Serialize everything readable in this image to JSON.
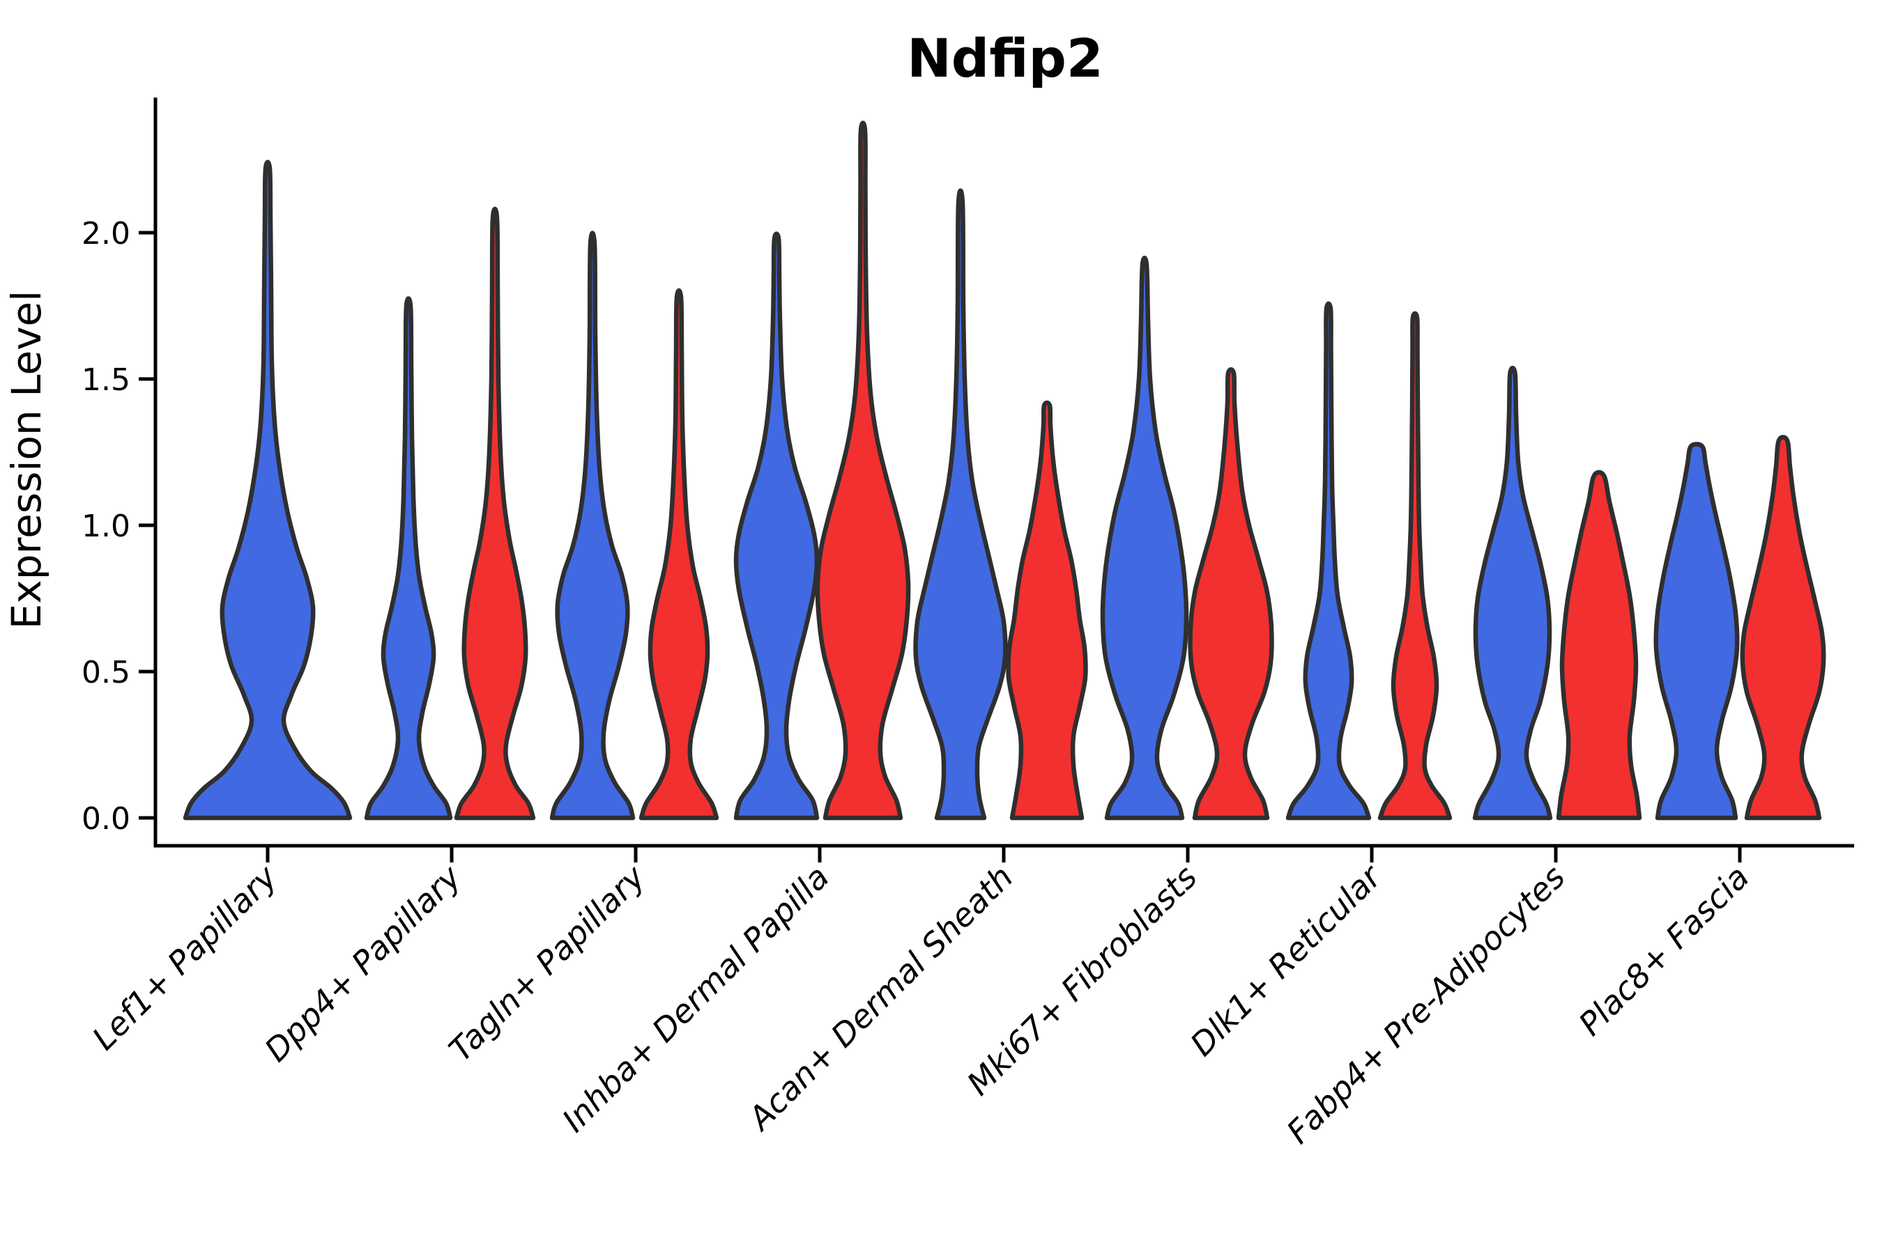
{
  "title": "Ndfip2",
  "axis": {
    "ylabel": "Expression Level",
    "yticks": [
      "0.0",
      "0.5",
      "1.0",
      "1.5",
      "2.0"
    ]
  },
  "colors": {
    "group1_fill": "#4169E1",
    "group2_fill": "#F23030",
    "outline": "#2F2F2F",
    "axis": "#000000",
    "background": "#FFFFFF"
  },
  "chart_data": {
    "type": "violin",
    "title": "Ndfip2",
    "xlabel": "",
    "ylabel": "Expression Level",
    "ylim": [
      0,
      2.45
    ],
    "yticks": [
      0.0,
      0.5,
      1.0,
      1.5,
      2.0
    ],
    "grid": false,
    "legend": "none",
    "categories": [
      "Lef1+ Papillary",
      "Dpp4+ Papillary",
      "Tagln+ Papillary",
      "Inhba+ Dermal Papilla",
      "Acan+ Dermal Sheath",
      "Mki67+ Fibroblasts",
      "Dlk1+ Reticular",
      "Fabp4+ Pre-Adipocytes",
      "Plac8+ Fascia"
    ],
    "groups": [
      {
        "name": "group1",
        "color": "#4169E1"
      },
      {
        "name": "group2",
        "color": "#F23030"
      }
    ],
    "violins": [
      {
        "category_index": 0,
        "group": "group1",
        "split": false,
        "max_expression": 2.22,
        "profile": [
          [
            0,
            118
          ],
          [
            0.05,
            110
          ],
          [
            0.1,
            92
          ],
          [
            0.16,
            62
          ],
          [
            0.24,
            38
          ],
          [
            0.33,
            23
          ],
          [
            0.42,
            34
          ],
          [
            0.52,
            52
          ],
          [
            0.62,
            62
          ],
          [
            0.72,
            65
          ],
          [
            0.82,
            56
          ],
          [
            0.92,
            42
          ],
          [
            1.05,
            28
          ],
          [
            1.2,
            17
          ],
          [
            1.35,
            10
          ],
          [
            1.55,
            6
          ],
          [
            1.8,
            5
          ],
          [
            2.05,
            4
          ],
          [
            2.22,
            3
          ]
        ]
      },
      {
        "category_index": 1,
        "group": "group1",
        "split": true,
        "max_expression": 1.75,
        "profile": [
          [
            0,
            60
          ],
          [
            0.05,
            54
          ],
          [
            0.11,
            36
          ],
          [
            0.18,
            22
          ],
          [
            0.27,
            15
          ],
          [
            0.36,
            20
          ],
          [
            0.46,
            30
          ],
          [
            0.55,
            36
          ],
          [
            0.63,
            33
          ],
          [
            0.72,
            24
          ],
          [
            0.83,
            15
          ],
          [
            0.95,
            10
          ],
          [
            1.1,
            7
          ],
          [
            1.3,
            5
          ],
          [
            1.55,
            4
          ],
          [
            1.75,
            3
          ]
        ]
      },
      {
        "category_index": 1,
        "group": "group2",
        "split": true,
        "max_expression": 2.05,
        "profile": [
          [
            0,
            55
          ],
          [
            0.05,
            48
          ],
          [
            0.11,
            30
          ],
          [
            0.18,
            18
          ],
          [
            0.25,
            16
          ],
          [
            0.35,
            26
          ],
          [
            0.45,
            38
          ],
          [
            0.55,
            44
          ],
          [
            0.65,
            43
          ],
          [
            0.75,
            38
          ],
          [
            0.85,
            30
          ],
          [
            0.95,
            21
          ],
          [
            1.08,
            13
          ],
          [
            1.25,
            8
          ],
          [
            1.5,
            5
          ],
          [
            1.8,
            4
          ],
          [
            2.05,
            3
          ]
        ]
      },
      {
        "category_index": 2,
        "group": "group1",
        "split": true,
        "max_expression": 1.96,
        "profile": [
          [
            0,
            58
          ],
          [
            0.05,
            52
          ],
          [
            0.12,
            32
          ],
          [
            0.2,
            18
          ],
          [
            0.29,
            16
          ],
          [
            0.4,
            24
          ],
          [
            0.52,
            38
          ],
          [
            0.63,
            48
          ],
          [
            0.73,
            50
          ],
          [
            0.83,
            42
          ],
          [
            0.93,
            28
          ],
          [
            1.05,
            17
          ],
          [
            1.2,
            10
          ],
          [
            1.4,
            6
          ],
          [
            1.65,
            4
          ],
          [
            1.96,
            3
          ]
        ]
      },
      {
        "category_index": 2,
        "group": "group2",
        "split": true,
        "max_expression": 1.78,
        "profile": [
          [
            0,
            54
          ],
          [
            0.05,
            47
          ],
          [
            0.12,
            28
          ],
          [
            0.19,
            17
          ],
          [
            0.27,
            17
          ],
          [
            0.37,
            27
          ],
          [
            0.47,
            37
          ],
          [
            0.56,
            41
          ],
          [
            0.65,
            39
          ],
          [
            0.75,
            31
          ],
          [
            0.86,
            20
          ],
          [
            1.0,
            12
          ],
          [
            1.15,
            8
          ],
          [
            1.35,
            5
          ],
          [
            1.6,
            4
          ],
          [
            1.78,
            3
          ]
        ]
      },
      {
        "category_index": 3,
        "group": "group1",
        "split": true,
        "max_expression": 1.98,
        "profile": [
          [
            0,
            58
          ],
          [
            0.06,
            52
          ],
          [
            0.13,
            32
          ],
          [
            0.21,
            18
          ],
          [
            0.3,
            14
          ],
          [
            0.4,
            18
          ],
          [
            0.52,
            28
          ],
          [
            0.65,
            42
          ],
          [
            0.78,
            54
          ],
          [
            0.88,
            58
          ],
          [
            0.97,
            54
          ],
          [
            1.08,
            42
          ],
          [
            1.2,
            26
          ],
          [
            1.33,
            15
          ],
          [
            1.5,
            8
          ],
          [
            1.7,
            5
          ],
          [
            1.85,
            4
          ],
          [
            1.98,
            3
          ]
        ]
      },
      {
        "category_index": 3,
        "group": "group2",
        "split": true,
        "max_expression": 2.35,
        "profile": [
          [
            0,
            54
          ],
          [
            0.06,
            48
          ],
          [
            0.14,
            32
          ],
          [
            0.22,
            25
          ],
          [
            0.32,
            28
          ],
          [
            0.44,
            42
          ],
          [
            0.56,
            56
          ],
          [
            0.68,
            63
          ],
          [
            0.8,
            65
          ],
          [
            0.92,
            60
          ],
          [
            1.04,
            48
          ],
          [
            1.16,
            34
          ],
          [
            1.3,
            20
          ],
          [
            1.45,
            11
          ],
          [
            1.65,
            6
          ],
          [
            1.9,
            4
          ],
          [
            2.15,
            3.5
          ],
          [
            2.35,
            3
          ]
        ]
      },
      {
        "category_index": 4,
        "group": "group1",
        "split": true,
        "max_expression": 2.1,
        "profile": [
          [
            0,
            34
          ],
          [
            0.07,
            27
          ],
          [
            0.15,
            24
          ],
          [
            0.24,
            26
          ],
          [
            0.33,
            38
          ],
          [
            0.45,
            56
          ],
          [
            0.55,
            64
          ],
          [
            0.67,
            62
          ],
          [
            0.78,
            52
          ],
          [
            0.9,
            40
          ],
          [
            1.02,
            28
          ],
          [
            1.15,
            17
          ],
          [
            1.3,
            10
          ],
          [
            1.5,
            6
          ],
          [
            1.75,
            4
          ],
          [
            2.1,
            3
          ]
        ]
      },
      {
        "category_index": 4,
        "group": "group2",
        "split": true,
        "max_expression": 1.41,
        "profile": [
          [
            0,
            50
          ],
          [
            0.08,
            44
          ],
          [
            0.18,
            38
          ],
          [
            0.28,
            38
          ],
          [
            0.38,
            47
          ],
          [
            0.48,
            55
          ],
          [
            0.58,
            54
          ],
          [
            0.68,
            47
          ],
          [
            0.78,
            42
          ],
          [
            0.88,
            35
          ],
          [
            0.98,
            25
          ],
          [
            1.1,
            16
          ],
          [
            1.22,
            9
          ],
          [
            1.34,
            5
          ],
          [
            1.41,
            4
          ]
        ]
      },
      {
        "category_index": 5,
        "group": "group1",
        "split": true,
        "max_expression": 1.89,
        "profile": [
          [
            0,
            54
          ],
          [
            0.05,
            48
          ],
          [
            0.12,
            28
          ],
          [
            0.2,
            18
          ],
          [
            0.3,
            24
          ],
          [
            0.42,
            42
          ],
          [
            0.55,
            56
          ],
          [
            0.68,
            60
          ],
          [
            0.8,
            58
          ],
          [
            0.92,
            52
          ],
          [
            1.05,
            42
          ],
          [
            1.18,
            28
          ],
          [
            1.32,
            16
          ],
          [
            1.5,
            8
          ],
          [
            1.7,
            5
          ],
          [
            1.89,
            3
          ]
        ]
      },
      {
        "category_index": 5,
        "group": "group2",
        "split": true,
        "max_expression": 1.52,
        "profile": [
          [
            0,
            52
          ],
          [
            0.06,
            46
          ],
          [
            0.14,
            28
          ],
          [
            0.22,
            20
          ],
          [
            0.32,
            30
          ],
          [
            0.43,
            48
          ],
          [
            0.53,
            57
          ],
          [
            0.65,
            58
          ],
          [
            0.77,
            52
          ],
          [
            0.88,
            40
          ],
          [
            1.0,
            26
          ],
          [
            1.12,
            16
          ],
          [
            1.28,
            9
          ],
          [
            1.42,
            5
          ],
          [
            1.52,
            4
          ]
        ]
      },
      {
        "category_index": 6,
        "group": "group1",
        "split": true,
        "max_expression": 1.74,
        "profile": [
          [
            0,
            58
          ],
          [
            0.05,
            50
          ],
          [
            0.11,
            30
          ],
          [
            0.18,
            16
          ],
          [
            0.27,
            17
          ],
          [
            0.37,
            27
          ],
          [
            0.46,
            33
          ],
          [
            0.55,
            31
          ],
          [
            0.65,
            22
          ],
          [
            0.76,
            13
          ],
          [
            0.88,
            9
          ],
          [
            1.0,
            7
          ],
          [
            1.15,
            5
          ],
          [
            1.4,
            4
          ],
          [
            1.6,
            3.5
          ],
          [
            1.74,
            3
          ]
        ]
      },
      {
        "category_index": 6,
        "group": "group2",
        "split": true,
        "max_expression": 1.71,
        "profile": [
          [
            0,
            50
          ],
          [
            0.05,
            42
          ],
          [
            0.11,
            24
          ],
          [
            0.17,
            14
          ],
          [
            0.25,
            16
          ],
          [
            0.35,
            26
          ],
          [
            0.45,
            31
          ],
          [
            0.55,
            27
          ],
          [
            0.65,
            18
          ],
          [
            0.76,
            11
          ],
          [
            0.88,
            8
          ],
          [
            1.0,
            6
          ],
          [
            1.15,
            5
          ],
          [
            1.4,
            4
          ],
          [
            1.6,
            3.5
          ],
          [
            1.71,
            3
          ]
        ]
      },
      {
        "category_index": 7,
        "group": "group1",
        "split": true,
        "max_expression": 1.52,
        "profile": [
          [
            0,
            54
          ],
          [
            0.05,
            48
          ],
          [
            0.13,
            30
          ],
          [
            0.21,
            20
          ],
          [
            0.3,
            26
          ],
          [
            0.4,
            40
          ],
          [
            0.52,
            50
          ],
          [
            0.63,
            53
          ],
          [
            0.75,
            50
          ],
          [
            0.87,
            40
          ],
          [
            0.98,
            28
          ],
          [
            1.1,
            15
          ],
          [
            1.22,
            8
          ],
          [
            1.38,
            5
          ],
          [
            1.52,
            3.5
          ]
        ]
      },
      {
        "category_index": 7,
        "group": "group2",
        "split": true,
        "max_expression": 1.17,
        "profile": [
          [
            0,
            58
          ],
          [
            0.08,
            54
          ],
          [
            0.18,
            46
          ],
          [
            0.28,
            44
          ],
          [
            0.4,
            50
          ],
          [
            0.52,
            53
          ],
          [
            0.64,
            50
          ],
          [
            0.76,
            44
          ],
          [
            0.88,
            34
          ],
          [
            0.98,
            25
          ],
          [
            1.08,
            15
          ],
          [
            1.17,
            7
          ]
        ]
      },
      {
        "category_index": 8,
        "group": "group1",
        "split": true,
        "max_expression": 1.27,
        "profile": [
          [
            0,
            56
          ],
          [
            0.06,
            51
          ],
          [
            0.14,
            36
          ],
          [
            0.23,
            29
          ],
          [
            0.33,
            36
          ],
          [
            0.45,
            50
          ],
          [
            0.58,
            58
          ],
          [
            0.7,
            56
          ],
          [
            0.82,
            48
          ],
          [
            0.93,
            38
          ],
          [
            1.03,
            28
          ],
          [
            1.13,
            19
          ],
          [
            1.21,
            13
          ],
          [
            1.27,
            8
          ]
        ]
      },
      {
        "category_index": 8,
        "group": "group2",
        "split": true,
        "max_expression": 1.29,
        "profile": [
          [
            0,
            52
          ],
          [
            0.06,
            46
          ],
          [
            0.14,
            31
          ],
          [
            0.22,
            27
          ],
          [
            0.32,
            37
          ],
          [
            0.43,
            52
          ],
          [
            0.53,
            58
          ],
          [
            0.63,
            56
          ],
          [
            0.74,
            46
          ],
          [
            0.85,
            35
          ],
          [
            0.97,
            24
          ],
          [
            1.1,
            15
          ],
          [
            1.2,
            10
          ],
          [
            1.29,
            6
          ]
        ]
      }
    ]
  }
}
